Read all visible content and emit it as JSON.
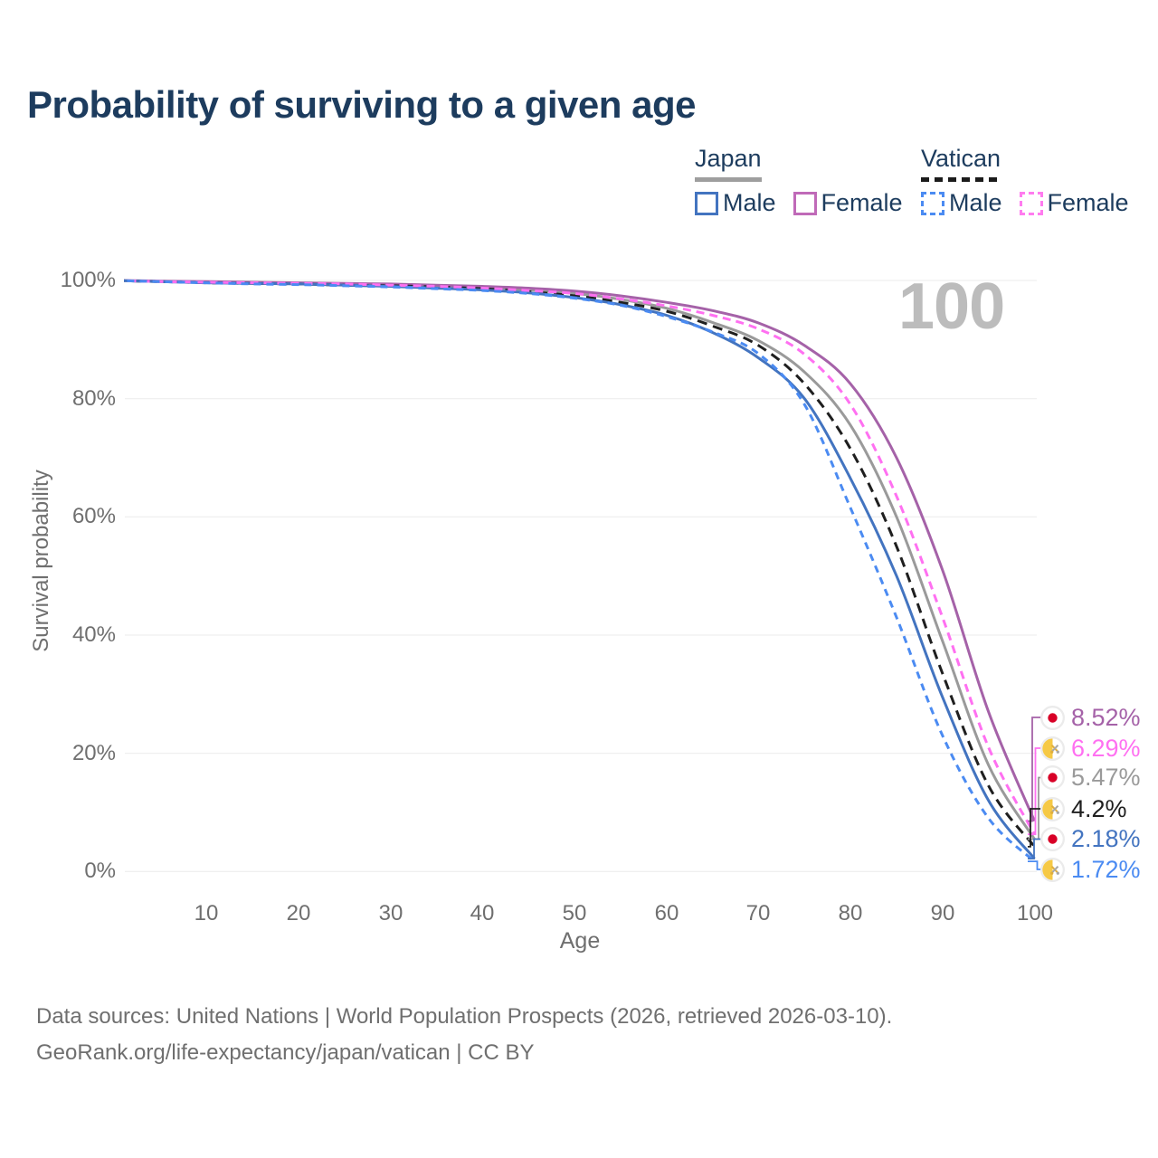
{
  "title": "Probability of surviving to a given age",
  "watermark": "100",
  "legend": {
    "groups": [
      {
        "name": "Japan",
        "underline_style": "solid",
        "underline_color": "#9e9e9e",
        "items": [
          {
            "label": "Male",
            "color": "#4374c0",
            "dashed": false
          },
          {
            "label": "Female",
            "color": "#c06ab8",
            "dashed": false
          }
        ]
      },
      {
        "name": "Vatican",
        "underline_style": "dashed",
        "underline_color": "#1b1b1b",
        "items": [
          {
            "label": "Male",
            "color": "#4b8bf2",
            "dashed": true
          },
          {
            "label": "Female",
            "color": "#ff7cef",
            "dashed": true
          }
        ]
      }
    ]
  },
  "axis": {
    "ylabel": "Survival probability",
    "xlabel": "Age",
    "y_ticks": [
      "100%",
      "80%",
      "60%",
      "40%",
      "20%",
      "0%"
    ],
    "y_tick_values": [
      100,
      80,
      60,
      40,
      20,
      0
    ],
    "x_ticks": [
      "10",
      "20",
      "30",
      "40",
      "50",
      "60",
      "70",
      "80",
      "90",
      "100"
    ],
    "x_tick_values": [
      10,
      20,
      30,
      40,
      50,
      60,
      70,
      80,
      90,
      100
    ]
  },
  "chart_data": {
    "type": "line",
    "title": "Probability of surviving to a given age",
    "xlabel": "Age",
    "ylabel": "Survival probability",
    "xlim": [
      0,
      100
    ],
    "ylim": [
      0,
      100
    ],
    "grid": "horizontal",
    "x": [
      0,
      5,
      10,
      15,
      20,
      25,
      30,
      35,
      40,
      45,
      50,
      55,
      60,
      65,
      70,
      75,
      80,
      85,
      90,
      95,
      100
    ],
    "series": [
      {
        "name": "Japan Female",
        "country": "Japan",
        "sex": "Female",
        "flag": "japan",
        "color": "#a562a8",
        "dash": null,
        "end_label": "8.52%",
        "end_value": 8.52,
        "values": [
          100,
          99.9,
          99.8,
          99.7,
          99.6,
          99.5,
          99.4,
          99.2,
          99.0,
          98.7,
          98.2,
          97.4,
          96.3,
          94.9,
          92.8,
          89.0,
          82.5,
          70.0,
          51.0,
          27.0,
          8.52
        ]
      },
      {
        "name": "Vatican Female",
        "country": "Vatican",
        "sex": "Female",
        "flag": "vatican",
        "color": "#ff70f1",
        "dash": "9 6",
        "end_label": "6.29%",
        "end_value": 6.29,
        "values": [
          100,
          99.8,
          99.7,
          99.6,
          99.5,
          99.4,
          99.2,
          99.0,
          98.7,
          98.3,
          97.8,
          96.9,
          95.7,
          94.1,
          91.8,
          87.5,
          79.0,
          63.5,
          43.0,
          21.0,
          6.29
        ]
      },
      {
        "name": "Japan",
        "country": "Japan",
        "sex": "Both",
        "flag": "japan",
        "color": "#9a9a9a",
        "dash": null,
        "end_label": "5.47%",
        "end_value": 5.47,
        "values": [
          100,
          99.8,
          99.7,
          99.6,
          99.5,
          99.3,
          99.2,
          99.0,
          98.8,
          98.4,
          97.8,
          96.8,
          95.3,
          92.9,
          89.8,
          84.5,
          75.5,
          60.0,
          39.0,
          18.0,
          5.47
        ]
      },
      {
        "name": "Vatican",
        "country": "Vatican",
        "sex": "Both",
        "flag": "vatican",
        "color": "#1f1f1f",
        "dash": "11 7",
        "end_label": "4.2%",
        "end_value": 4.2,
        "values": [
          100,
          99.8,
          99.6,
          99.5,
          99.4,
          99.2,
          99.1,
          98.9,
          98.6,
          98.1,
          97.4,
          96.3,
          94.8,
          92.3,
          89.0,
          82.5,
          71.5,
          55.0,
          33.5,
          14.5,
          4.2
        ]
      },
      {
        "name": "Japan Male",
        "country": "Japan",
        "sex": "Male",
        "flag": "japan",
        "color": "#4374c0",
        "dash": null,
        "end_label": "2.18%",
        "end_value": 2.18,
        "values": [
          100,
          99.8,
          99.6,
          99.5,
          99.4,
          99.2,
          99.0,
          98.7,
          98.4,
          97.9,
          97.1,
          95.9,
          94.1,
          91.2,
          86.9,
          80.0,
          66.5,
          50.0,
          29.5,
          12.0,
          2.18
        ]
      },
      {
        "name": "Vatican Male",
        "country": "Vatican",
        "sex": "Male",
        "flag": "vatican",
        "color": "#4b8bf2",
        "dash": "8 6",
        "end_label": "1.72%",
        "end_value": 1.72,
        "values": [
          100,
          99.8,
          99.6,
          99.4,
          99.3,
          99.1,
          98.9,
          98.6,
          98.3,
          97.8,
          97.0,
          95.8,
          93.9,
          91.3,
          87.6,
          79.0,
          61.5,
          43.0,
          23.0,
          9.0,
          1.72
        ]
      }
    ]
  },
  "colors": {
    "title_text": "#1d3c5e",
    "axis_text": "#6f6f6f",
    "gridline": "#ebebeb",
    "watermark": "#bcbcbc",
    "japan_flag_red": "#d80027",
    "vatican_flag_yellow": "#f6c945"
  },
  "footer": {
    "line1": "Data sources: United Nations | World Population Prospects (2026, retrieved 2026-03-10).",
    "line2": "GeoRank.org/life-expectancy/japan/vatican | CC BY"
  }
}
